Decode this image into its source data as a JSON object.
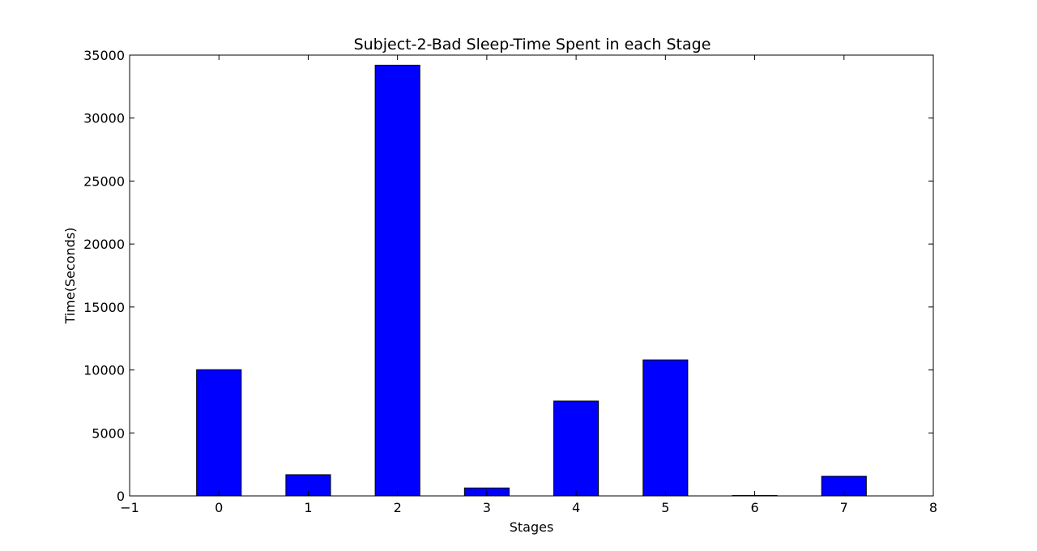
{
  "chart_data": {
    "type": "bar",
    "title": "Subject-2-Bad Sleep-Time Spent in each Stage",
    "xlabel": "Stages",
    "ylabel": "Time(Seconds)",
    "x": [
      0,
      1,
      2,
      3,
      4,
      5,
      6,
      7
    ],
    "values": [
      10020,
      1680,
      34200,
      630,
      7530,
      10800,
      30,
      1560
    ],
    "bar_width": 0.5,
    "xlim": [
      -1,
      8
    ],
    "ylim": [
      0,
      35000
    ],
    "xticks": [
      -1,
      0,
      1,
      2,
      3,
      4,
      5,
      6,
      7,
      8
    ],
    "xtick_labels": [
      "−1",
      "0",
      "1",
      "2",
      "3",
      "4",
      "5",
      "6",
      "7",
      "8"
    ],
    "yticks": [
      0,
      5000,
      10000,
      15000,
      20000,
      25000,
      30000,
      35000
    ],
    "ytick_labels": [
      "0",
      "5000",
      "10000",
      "15000",
      "20000",
      "25000",
      "30000",
      "35000"
    ],
    "bar_color": "#0000ff",
    "edge_color": "#000000",
    "grid": false,
    "legend": "none"
  }
}
